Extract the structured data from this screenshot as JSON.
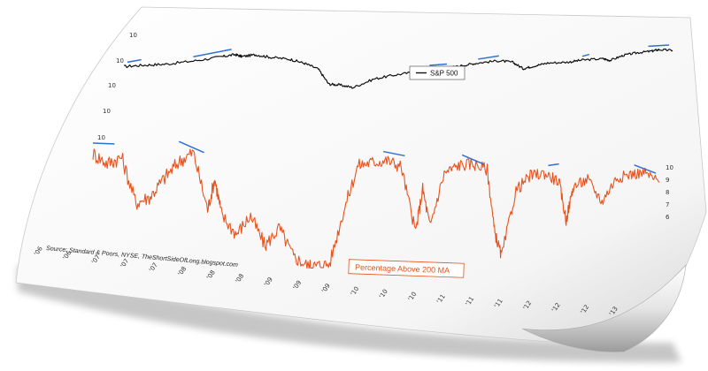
{
  "chart_data": [
    {
      "type": "line",
      "series": [
        {
          "name": "S&P 500",
          "color": "#111111",
          "x": [
            2005.9,
            2006.2,
            2006.5,
            2006.9,
            2007.3,
            2007.5,
            2007.6,
            2007.8,
            2008.0,
            2008.3,
            2008.5,
            2008.7,
            2008.85,
            2009.0,
            2009.2,
            2009.5,
            2009.8,
            2010.1,
            2010.3,
            2010.5,
            2010.8,
            2011.0,
            2011.3,
            2011.5,
            2011.65,
            2011.8,
            2012.0,
            2012.3,
            2012.5,
            2012.8,
            2012.9,
            2013.1,
            2013.3,
            2013.5,
            2013.6,
            2013.8
          ],
          "values": [
            0.72,
            0.74,
            0.75,
            0.8,
            0.87,
            0.91,
            0.87,
            0.9,
            0.85,
            0.8,
            0.72,
            0.6,
            0.3,
            0.28,
            0.22,
            0.38,
            0.45,
            0.5,
            0.46,
            0.55,
            0.62,
            0.66,
            0.7,
            0.66,
            0.52,
            0.57,
            0.63,
            0.64,
            0.68,
            0.7,
            0.66,
            0.77,
            0.82,
            0.85,
            0.88,
            0.86
          ]
        },
        {
          "name": "Percentage Above 200 MA",
          "color": "#e8531d",
          "x": [
            2005.9,
            2006.1,
            2006.3,
            2006.5,
            2006.7,
            2006.9,
            2007.1,
            2007.3,
            2007.5,
            2007.6,
            2007.7,
            2007.9,
            2008.1,
            2008.3,
            2008.5,
            2008.7,
            2008.9,
            2009.0,
            2009.2,
            2009.4,
            2009.6,
            2009.8,
            2010.0,
            2010.2,
            2010.4,
            2010.5,
            2010.6,
            2010.8,
            2011.0,
            2011.2,
            2011.4,
            2011.5,
            2011.6,
            2011.8,
            2012.0,
            2012.2,
            2012.4,
            2012.5,
            2012.6,
            2012.8,
            2013.0,
            2013.2,
            2013.4,
            2013.6,
            2013.8
          ],
          "values": [
            0.92,
            0.85,
            0.9,
            0.55,
            0.6,
            0.75,
            0.88,
            0.96,
            0.5,
            0.75,
            0.45,
            0.3,
            0.45,
            0.2,
            0.35,
            0.1,
            0.02,
            0.02,
            0.03,
            0.5,
            0.9,
            0.93,
            0.95,
            0.9,
            0.3,
            0.7,
            0.35,
            0.85,
            0.93,
            0.95,
            0.9,
            0.3,
            0.05,
            0.7,
            0.85,
            0.88,
            0.8,
            0.4,
            0.75,
            0.83,
            0.6,
            0.85,
            0.9,
            0.92,
            0.82
          ]
        }
      ],
      "legend": "top-center",
      "grid": false
    }
  ],
  "left_ticks": [
    "10",
    "10",
    "10",
    "10",
    "10"
  ],
  "right_ticks": [
    "10",
    "9",
    "8",
    "7",
    "6"
  ],
  "x_tick_labels": [
    "'06",
    "'06",
    "'07",
    "'07",
    "'07",
    "'08",
    "'08",
    "'08",
    "'09",
    "'09",
    "'09",
    "'10",
    "'10",
    "'10",
    "'11",
    "'11",
    "'11",
    "'12",
    "'12",
    "'12",
    "'13"
  ],
  "source_note": "Source: Standard & Poors, NYSE, TheShortSideOfLong.blogspot.com",
  "legend_label": "S&P 500",
  "pct_label": "Percentage Above 200 MA",
  "accent_line_color": "#2f6fd6"
}
